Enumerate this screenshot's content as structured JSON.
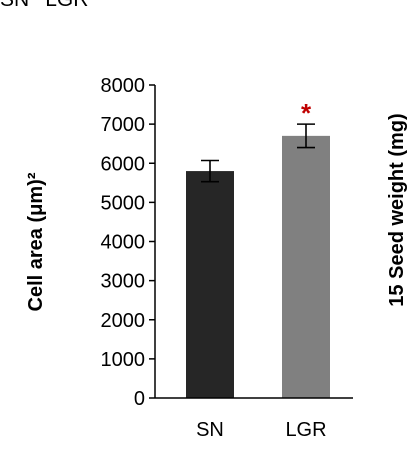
{
  "header": {
    "left": "SN",
    "right": "LGR"
  },
  "chart_data": {
    "type": "bar",
    "categories": [
      "SN",
      "LGR"
    ],
    "values": [
      5800,
      6700
    ],
    "error": [
      270,
      300
    ],
    "colors": [
      "#262626",
      "#808080"
    ],
    "significance": [
      "",
      "*"
    ],
    "significance_color": "#c00000",
    "ylabel": "Cell area  (μm)²",
    "ylabel_right": "15 Seed weight (mg)",
    "ylim": [
      0,
      8000
    ],
    "yticks": [
      0,
      1000,
      2000,
      3000,
      4000,
      5000,
      6000,
      7000,
      8000
    ],
    "grid": false,
    "legend": "none"
  }
}
